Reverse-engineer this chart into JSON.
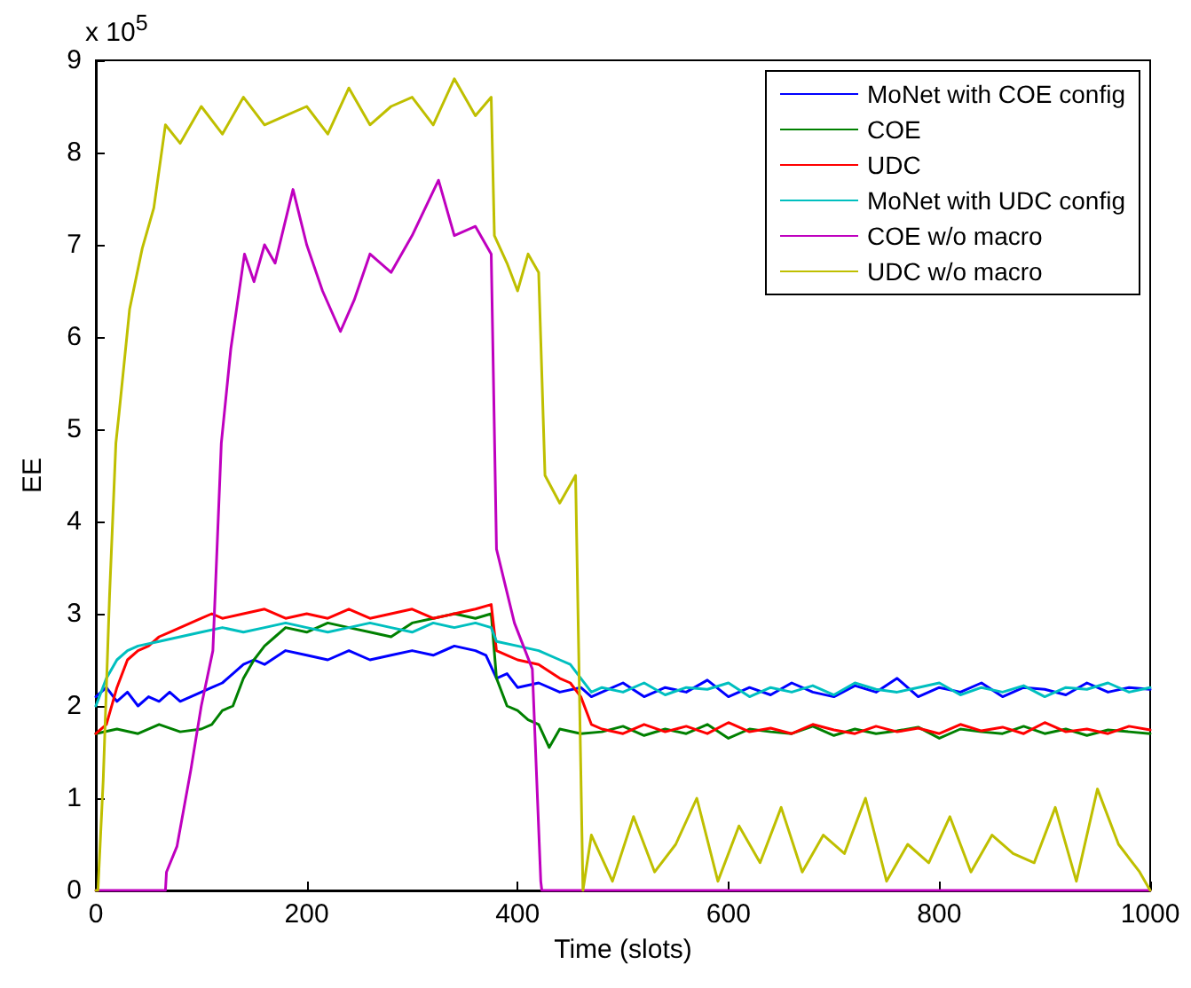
{
  "chart_data": {
    "type": "line",
    "xlabel": "Time (slots)",
    "ylabel": "EE",
    "annotations": [
      "x 10$^{5}$"
    ],
    "xlim": [
      0,
      1000
    ],
    "xticks": [
      0,
      200,
      400,
      600,
      800,
      1000
    ],
    "ylim": [
      0,
      9
    ],
    "yticks": [
      0,
      1,
      2,
      3,
      4,
      5,
      6,
      7,
      8,
      9
    ],
    "grid": false,
    "legend": "top right",
    "marker": "none",
    "line_style": "solid",
    "series": [
      {
        "name": "MoNet with COE config",
        "color": "#0000ff",
        "x": [
          0,
          10,
          20,
          30,
          40,
          50,
          60,
          70,
          80,
          90,
          100,
          110,
          120,
          130,
          140,
          150,
          160,
          180,
          200,
          220,
          240,
          260,
          280,
          300,
          320,
          340,
          360,
          370,
          380,
          390,
          400,
          420,
          440,
          460,
          470,
          480,
          500,
          520,
          540,
          560,
          580,
          600,
          620,
          640,
          660,
          680,
          700,
          720,
          740,
          760,
          780,
          800,
          820,
          840,
          860,
          880,
          900,
          920,
          940,
          960,
          980,
          1000
        ],
        "values": [
          2.1,
          2.2,
          2.05,
          2.15,
          2.0,
          2.1,
          2.05,
          2.15,
          2.05,
          2.1,
          2.15,
          2.2,
          2.25,
          2.35,
          2.45,
          2.5,
          2.45,
          2.6,
          2.55,
          2.5,
          2.6,
          2.5,
          2.55,
          2.6,
          2.55,
          2.65,
          2.6,
          2.55,
          2.3,
          2.35,
          2.2,
          2.25,
          2.15,
          2.2,
          2.1,
          2.15,
          2.25,
          2.1,
          2.2,
          2.15,
          2.28,
          2.1,
          2.2,
          2.12,
          2.25,
          2.15,
          2.1,
          2.22,
          2.15,
          2.3,
          2.1,
          2.2,
          2.15,
          2.25,
          2.1,
          2.2,
          2.18,
          2.12,
          2.25,
          2.15,
          2.2,
          2.18
        ]
      },
      {
        "name": "COE",
        "color": "#008000",
        "x": [
          0,
          20,
          40,
          60,
          80,
          100,
          110,
          120,
          130,
          140,
          150,
          160,
          170,
          180,
          200,
          220,
          240,
          260,
          280,
          300,
          320,
          340,
          360,
          375,
          380,
          390,
          400,
          410,
          420,
          430,
          440,
          460,
          480,
          500,
          520,
          540,
          560,
          580,
          600,
          620,
          640,
          660,
          680,
          700,
          720,
          740,
          760,
          780,
          800,
          820,
          840,
          860,
          880,
          900,
          920,
          940,
          960,
          980,
          1000
        ],
        "values": [
          1.7,
          1.75,
          1.7,
          1.8,
          1.72,
          1.75,
          1.8,
          1.95,
          2.0,
          2.3,
          2.5,
          2.65,
          2.75,
          2.85,
          2.8,
          2.9,
          2.85,
          2.8,
          2.75,
          2.9,
          2.95,
          3.0,
          2.95,
          3.0,
          2.3,
          2.0,
          1.95,
          1.85,
          1.8,
          1.55,
          1.75,
          1.7,
          1.72,
          1.78,
          1.68,
          1.75,
          1.7,
          1.8,
          1.65,
          1.75,
          1.72,
          1.7,
          1.78,
          1.68,
          1.75,
          1.7,
          1.73,
          1.77,
          1.65,
          1.75,
          1.72,
          1.7,
          1.78,
          1.7,
          1.75,
          1.68,
          1.74,
          1.72,
          1.7
        ]
      },
      {
        "name": "UDC",
        "color": "#ff0000",
        "x": [
          0,
          10,
          20,
          30,
          40,
          50,
          60,
          70,
          80,
          90,
          100,
          110,
          120,
          140,
          160,
          180,
          200,
          220,
          240,
          260,
          280,
          300,
          320,
          340,
          360,
          375,
          380,
          390,
          400,
          420,
          440,
          450,
          460,
          470,
          480,
          500,
          520,
          540,
          560,
          580,
          600,
          620,
          640,
          660,
          680,
          700,
          720,
          740,
          760,
          780,
          800,
          820,
          840,
          860,
          880,
          900,
          920,
          940,
          960,
          980,
          1000
        ],
        "values": [
          1.7,
          1.8,
          2.2,
          2.5,
          2.6,
          2.65,
          2.75,
          2.8,
          2.85,
          2.9,
          2.95,
          3.0,
          2.95,
          3.0,
          3.05,
          2.95,
          3.0,
          2.95,
          3.05,
          2.95,
          3.0,
          3.05,
          2.95,
          3.0,
          3.05,
          3.1,
          2.6,
          2.55,
          2.5,
          2.45,
          2.3,
          2.25,
          2.1,
          1.8,
          1.75,
          1.7,
          1.8,
          1.72,
          1.78,
          1.7,
          1.82,
          1.72,
          1.76,
          1.7,
          1.8,
          1.74,
          1.7,
          1.78,
          1.72,
          1.76,
          1.7,
          1.8,
          1.73,
          1.77,
          1.7,
          1.82,
          1.72,
          1.75,
          1.7,
          1.78,
          1.74
        ]
      },
      {
        "name": "MoNet with UDC config",
        "color": "#00bfbf",
        "x": [
          0,
          10,
          20,
          30,
          40,
          60,
          80,
          100,
          120,
          140,
          160,
          180,
          200,
          220,
          240,
          260,
          280,
          300,
          320,
          340,
          360,
          375,
          380,
          400,
          420,
          440,
          450,
          460,
          470,
          480,
          500,
          520,
          540,
          560,
          580,
          600,
          620,
          640,
          660,
          680,
          700,
          720,
          740,
          760,
          780,
          800,
          820,
          840,
          860,
          880,
          900,
          920,
          940,
          960,
          980,
          1000
        ],
        "values": [
          2.0,
          2.3,
          2.5,
          2.6,
          2.65,
          2.7,
          2.75,
          2.8,
          2.85,
          2.8,
          2.85,
          2.9,
          2.85,
          2.8,
          2.85,
          2.9,
          2.85,
          2.8,
          2.9,
          2.85,
          2.9,
          2.85,
          2.7,
          2.65,
          2.6,
          2.5,
          2.45,
          2.3,
          2.15,
          2.2,
          2.15,
          2.25,
          2.12,
          2.2,
          2.18,
          2.25,
          2.1,
          2.2,
          2.15,
          2.22,
          2.12,
          2.25,
          2.18,
          2.15,
          2.2,
          2.25,
          2.12,
          2.2,
          2.15,
          2.22,
          2.1,
          2.2,
          2.18,
          2.25,
          2.15,
          2.2
        ]
      },
      {
        "name": "COE w/o macro",
        "color": "#bf00bf",
        "x": [
          0,
          66,
          67,
          77,
          90,
          100,
          111,
          119,
          128,
          141,
          150,
          160,
          170,
          187,
          200,
          215,
          232,
          245,
          260,
          280,
          300,
          325,
          340,
          360,
          375,
          380,
          397,
          414,
          422,
          423,
          1000
        ],
        "values": [
          0,
          0,
          0.2,
          0.48,
          1.3,
          2.0,
          2.6,
          4.85,
          5.87,
          6.9,
          6.6,
          7.0,
          6.8,
          7.6,
          7.0,
          6.5,
          6.06,
          6.4,
          6.9,
          6.7,
          7.1,
          7.7,
          7.1,
          7.2,
          6.9,
          3.7,
          2.9,
          2.4,
          0.1,
          0,
          0
        ]
      },
      {
        "name": "UDC w/o macro",
        "color": "#bfbf00",
        "x": [
          0,
          2,
          7,
          13,
          19,
          22,
          32,
          44,
          55,
          66,
          80,
          100,
          120,
          140,
          160,
          180,
          200,
          220,
          240,
          260,
          280,
          300,
          320,
          340,
          360,
          375,
          378,
          390,
          400,
          410,
          420,
          426,
          440,
          455,
          462,
          470,
          490,
          510,
          530,
          550,
          570,
          590,
          610,
          630,
          650,
          670,
          690,
          710,
          730,
          750,
          770,
          790,
          810,
          830,
          850,
          870,
          890,
          910,
          930,
          950,
          970,
          990,
          1000
        ],
        "values": [
          0,
          0,
          1.2,
          3.2,
          4.85,
          5.17,
          6.3,
          6.96,
          7.4,
          8.3,
          8.1,
          8.5,
          8.2,
          8.6,
          8.3,
          8.4,
          8.5,
          8.2,
          8.7,
          8.3,
          8.5,
          8.6,
          8.3,
          8.8,
          8.4,
          8.6,
          7.1,
          6.8,
          6.5,
          6.9,
          6.7,
          4.5,
          4.2,
          4.5,
          0,
          0.6,
          0.1,
          0.8,
          0.2,
          0.5,
          1.0,
          0.1,
          0.7,
          0.3,
          0.9,
          0.2,
          0.6,
          0.4,
          1.0,
          0.1,
          0.5,
          0.3,
          0.8,
          0.2,
          0.6,
          0.4,
          0.3,
          0.9,
          0.1,
          1.1,
          0.5,
          0.2,
          0
        ]
      }
    ]
  }
}
